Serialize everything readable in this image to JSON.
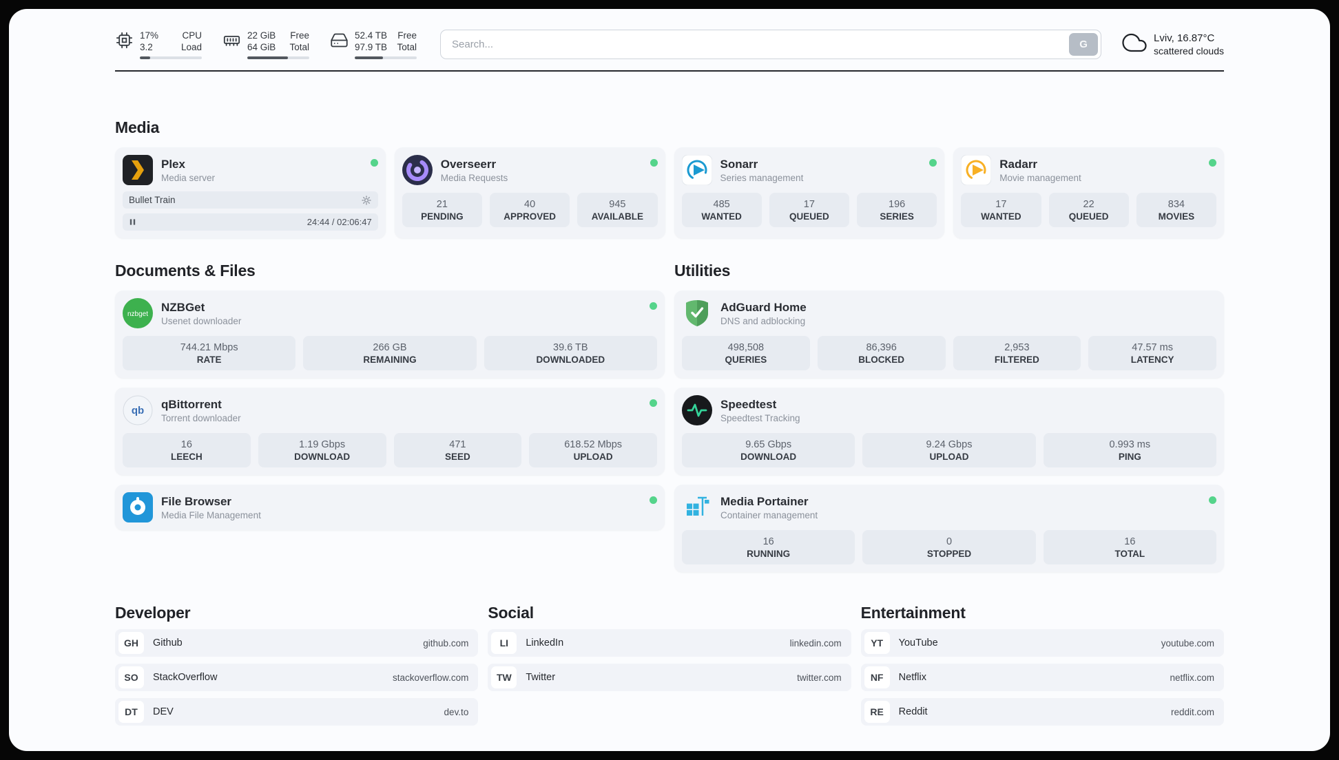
{
  "topbar": {
    "cpu": {
      "v1": "17%",
      "l1": "CPU",
      "v2": "3.2",
      "l2": "Load",
      "progress": "17%"
    },
    "ram": {
      "v1": "22 GiB",
      "l1": "Free",
      "v2": "64 GiB",
      "l2": "Total",
      "progress": "66%"
    },
    "disk": {
      "v1": "52.4 TB",
      "l1": "Free",
      "v2": "97.9 TB",
      "l2": "Total",
      "progress": "46%"
    },
    "search": {
      "placeholder": "Search...",
      "button_label": "G"
    },
    "weather": {
      "location": "Lviv, 16.87°C",
      "condition": "scattered clouds"
    }
  },
  "sections": {
    "media": {
      "heading": "Media",
      "plex": {
        "title": "Plex",
        "subtitle": "Media server",
        "now_playing": "Bullet Train",
        "time": "24:44 / 02:06:47"
      },
      "overseerr": {
        "title": "Overseerr",
        "subtitle": "Media Requests",
        "stats": [
          {
            "value": "21",
            "label": "PENDING"
          },
          {
            "value": "40",
            "label": "APPROVED"
          },
          {
            "value": "945",
            "label": "AVAILABLE"
          }
        ]
      },
      "sonarr": {
        "title": "Sonarr",
        "subtitle": "Series management",
        "stats": [
          {
            "value": "485",
            "label": "WANTED"
          },
          {
            "value": "17",
            "label": "QUEUED"
          },
          {
            "value": "196",
            "label": "SERIES"
          }
        ]
      },
      "radarr": {
        "title": "Radarr",
        "subtitle": "Movie management",
        "stats": [
          {
            "value": "17",
            "label": "WANTED"
          },
          {
            "value": "22",
            "label": "QUEUED"
          },
          {
            "value": "834",
            "label": "MOVIES"
          }
        ]
      }
    },
    "documents": {
      "heading": "Documents & Files",
      "nzbget": {
        "title": "NZBGet",
        "subtitle": "Usenet downloader",
        "icon_text": "nzbget",
        "stats": [
          {
            "value": "744.21 Mbps",
            "label": "RATE"
          },
          {
            "value": "266 GB",
            "label": "REMAINING"
          },
          {
            "value": "39.6 TB",
            "label": "DOWNLOADED"
          }
        ]
      },
      "qbittorrent": {
        "title": "qBittorrent",
        "subtitle": "Torrent downloader",
        "icon_text": "qb",
        "stats": [
          {
            "value": "16",
            "label": "LEECH"
          },
          {
            "value": "1.19 Gbps",
            "label": "DOWNLOAD"
          },
          {
            "value": "471",
            "label": "SEED"
          },
          {
            "value": "618.52 Mbps",
            "label": "UPLOAD"
          }
        ]
      },
      "filebrowser": {
        "title": "File Browser",
        "subtitle": "Media File Management"
      }
    },
    "utilities": {
      "heading": "Utilities",
      "adguard": {
        "title": "AdGuard Home",
        "subtitle": "DNS and adblocking",
        "stats": [
          {
            "value": "498,508",
            "label": "QUERIES"
          },
          {
            "value": "86,396",
            "label": "BLOCKED"
          },
          {
            "value": "2,953",
            "label": "FILTERED"
          },
          {
            "value": "47.57 ms",
            "label": "LATENCY"
          }
        ]
      },
      "speedtest": {
        "title": "Speedtest",
        "subtitle": "Speedtest Tracking",
        "stats": [
          {
            "value": "9.65 Gbps",
            "label": "DOWNLOAD"
          },
          {
            "value": "9.24 Gbps",
            "label": "UPLOAD"
          },
          {
            "value": "0.993 ms",
            "label": "PING"
          }
        ]
      },
      "portainer": {
        "title": "Media Portainer",
        "subtitle": "Container management",
        "stats": [
          {
            "value": "16",
            "label": "RUNNING"
          },
          {
            "value": "0",
            "label": "STOPPED"
          },
          {
            "value": "16",
            "label": "TOTAL"
          }
        ]
      }
    }
  },
  "bookmarks": [
    {
      "heading": "Developer",
      "items": [
        {
          "badge": "GH",
          "name": "Github",
          "url": "github.com"
        },
        {
          "badge": "SO",
          "name": "StackOverflow",
          "url": "stackoverflow.com"
        },
        {
          "badge": "DT",
          "name": "DEV",
          "url": "dev.to"
        }
      ]
    },
    {
      "heading": "Social",
      "items": [
        {
          "badge": "LI",
          "name": "LinkedIn",
          "url": "linkedin.com"
        },
        {
          "badge": "TW",
          "name": "Twitter",
          "url": "twitter.com"
        }
      ]
    },
    {
      "heading": "Entertainment",
      "items": [
        {
          "badge": "YT",
          "name": "YouTube",
          "url": "youtube.com"
        },
        {
          "badge": "NF",
          "name": "Netflix",
          "url": "netflix.com"
        },
        {
          "badge": "RE",
          "name": "Reddit",
          "url": "reddit.com"
        }
      ]
    }
  ],
  "colors": {
    "status_online": "#55d48b",
    "plex_accent": "#e5a00d"
  }
}
